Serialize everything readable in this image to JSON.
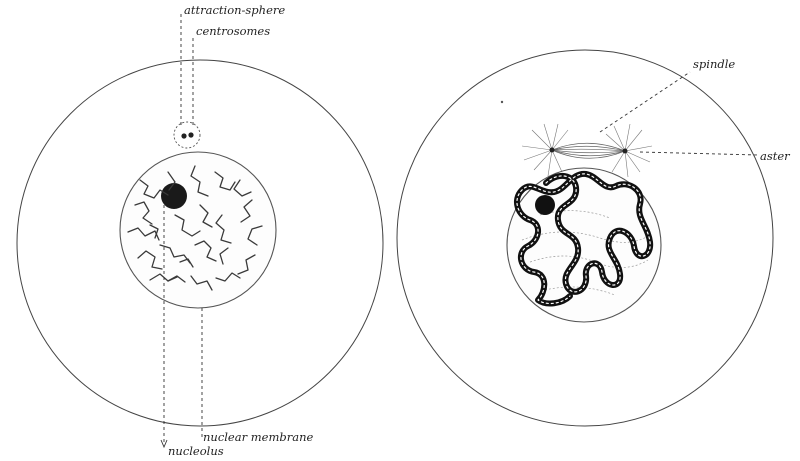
{
  "left_cell": {
    "labels": {
      "attraction_sphere": "attraction-sphere",
      "centrosomes": "centrosomes",
      "nucleolus": "nucleolus",
      "nuclear_membrane": "nuclear membrane"
    }
  },
  "right_cell": {
    "labels": {
      "spindle": "spindle",
      "aster": "aster"
    }
  },
  "colors": {
    "ink": "#111111",
    "outline": "#444444",
    "background": "#ffffff"
  }
}
